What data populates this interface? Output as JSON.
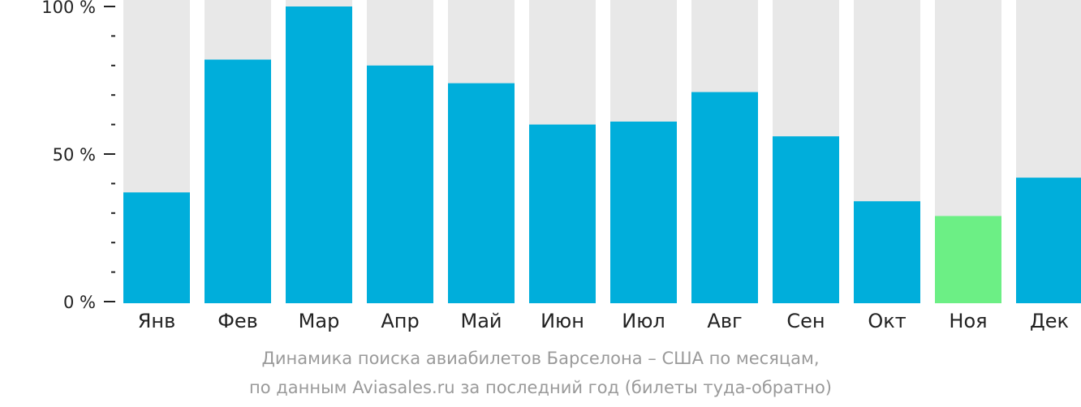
{
  "chart_data": {
    "type": "bar",
    "categories": [
      "Янв",
      "Фев",
      "Мар",
      "Апр",
      "Май",
      "Июн",
      "Июл",
      "Авг",
      "Сен",
      "Окт",
      "Ноя",
      "Дек"
    ],
    "values": [
      37,
      82,
      100,
      80,
      74,
      60,
      61,
      71,
      56,
      34,
      29,
      42
    ],
    "ylim": [
      0,
      100
    ],
    "yticks": [
      {
        "value": 0,
        "label": "0 %"
      },
      {
        "value": 50,
        "label": "50 %"
      },
      {
        "value": 100,
        "label": "100 %"
      }
    ],
    "minor_tick_step": 10,
    "grid": false,
    "colors": {
      "bar": "#00AEDB",
      "highlight_bar": "#6CEF85",
      "background_bar": "#E8E8E8",
      "axis": "#222222"
    },
    "highlight_index": 10
  },
  "caption": {
    "line1": "Динамика поиска авиабилетов Барселона – США по месяцам,",
    "line2": "по данным Aviasales.ru за последний год (билеты туда-обратно)"
  }
}
